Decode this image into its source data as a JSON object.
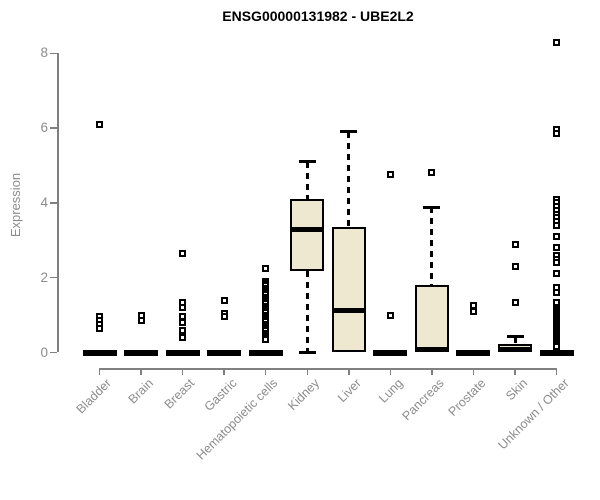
{
  "chart_data": {
    "type": "boxplot",
    "title": "ENSG00000131982 - UBE2L2",
    "ylabel": "Expression",
    "xlabel": "",
    "ylim": [
      0,
      8
    ],
    "y_ticks": [
      0,
      2,
      4,
      6,
      8
    ],
    "grid": false,
    "legend": "none",
    "box_fill": "#EDE8CF",
    "box_stroke": "#000000",
    "axis_color": "#808080",
    "categories": [
      "Bladder",
      "Brain",
      "Breast",
      "Gastric",
      "Hematopoietic cells",
      "Kidney",
      "Liver",
      "Lung",
      "Pancreas",
      "Prostate",
      "Skin",
      "Unknown / Other"
    ],
    "series": [
      {
        "category": "Bladder",
        "whisker_low": 0,
        "q1": 0,
        "median": 0,
        "q3": 0,
        "whisker_high": 0,
        "outliers": [
          6.1,
          0.95,
          0.85,
          0.75,
          0.65
        ]
      },
      {
        "category": "Brain",
        "whisker_low": 0,
        "q1": 0,
        "median": 0,
        "q3": 0,
        "whisker_high": 0,
        "outliers": [
          1.0,
          0.85
        ]
      },
      {
        "category": "Breast",
        "whisker_low": 0,
        "q1": 0,
        "median": 0,
        "q3": 0,
        "whisker_high": 0,
        "outliers": [
          2.65,
          1.35,
          1.2,
          0.95,
          0.8,
          0.6,
          0.4
        ]
      },
      {
        "category": "Gastric",
        "whisker_low": 0,
        "q1": 0,
        "median": 0,
        "q3": 0,
        "whisker_high": 0,
        "outliers": [
          1.4,
          1.05,
          0.95
        ]
      },
      {
        "category": "Hematopoietic cells",
        "whisker_low": 0,
        "q1": 0,
        "median": 0,
        "q3": 0,
        "whisker_high": 0,
        "outliers": [
          2.25,
          1.9,
          1.84,
          1.78,
          1.72,
          1.66,
          1.6,
          1.54,
          1.48,
          1.42,
          1.36,
          1.3,
          1.24,
          1.18,
          1.12,
          1.06,
          1.0,
          0.94,
          0.88,
          0.82,
          0.76,
          0.7,
          0.64,
          0.58,
          0.52,
          0.46,
          0.4,
          0.34
        ]
      },
      {
        "category": "Kidney",
        "whisker_low": 0,
        "q1": 2.17,
        "median": 3.3,
        "q3": 4.1,
        "whisker_high": 5.1,
        "outliers": []
      },
      {
        "category": "Liver",
        "whisker_low": 0,
        "q1": 0,
        "median": 1.12,
        "q3": 3.35,
        "whisker_high": 5.9,
        "outliers": []
      },
      {
        "category": "Lung",
        "whisker_low": 0,
        "q1": 0,
        "median": 0,
        "q3": 0,
        "whisker_high": 0,
        "outliers": [
          4.75,
          1.0
        ]
      },
      {
        "category": "Pancreas",
        "whisker_low": 0,
        "q1": 0,
        "median": 0.07,
        "q3": 1.8,
        "whisker_high": 3.88,
        "outliers": [
          4.8
        ]
      },
      {
        "category": "Prostate",
        "whisker_low": 0,
        "q1": 0,
        "median": 0,
        "q3": 0,
        "whisker_high": 0,
        "outliers": [
          1.25,
          1.1
        ]
      },
      {
        "category": "Skin",
        "whisker_low": 0,
        "q1": 0,
        "median": 0.08,
        "q3": 0.22,
        "whisker_high": 0.42,
        "outliers": [
          2.9,
          2.3,
          1.35
        ]
      },
      {
        "category": "Unknown / Other",
        "whisker_low": 0,
        "q1": 0,
        "median": 0,
        "q3": 0,
        "whisker_high": 0,
        "outliers": [
          8.3,
          5.95,
          5.85,
          4.1,
          4.0,
          3.9,
          3.8,
          3.7,
          3.6,
          3.5,
          3.4,
          3.1,
          2.8,
          2.6,
          2.5,
          2.4,
          2.1,
          1.75,
          1.6,
          1.35,
          1.2,
          1.15,
          1.1,
          1.05,
          1.0,
          0.95,
          0.9,
          0.85,
          0.8,
          0.75,
          0.7,
          0.65,
          0.6,
          0.55,
          0.5,
          0.45,
          0.4,
          0.35,
          0.3,
          0.25,
          0.2,
          0.15
        ]
      }
    ]
  }
}
